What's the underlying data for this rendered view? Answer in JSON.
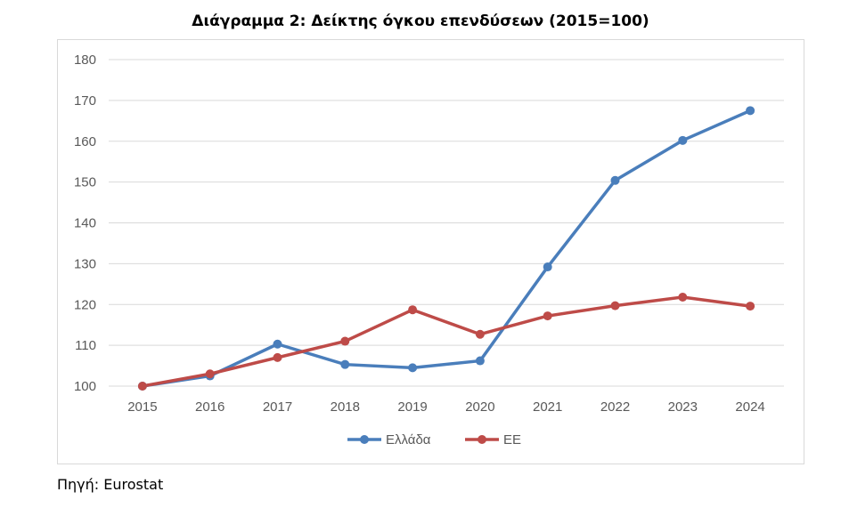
{
  "chart_data": {
    "type": "line",
    "title": "Διάγραμμα 2: Δείκτης όγκου επενδύσεων (2015=100)",
    "x": [
      "2015",
      "2016",
      "2017",
      "2018",
      "2019",
      "2020",
      "2021",
      "2022",
      "2023",
      "2024"
    ],
    "series": [
      {
        "name": "Ελλάδα",
        "color": "#4a7ebb",
        "values": [
          100,
          102.5,
          110.3,
          105.3,
          104.5,
          106.2,
          129.2,
          150.4,
          160.2,
          167.5
        ]
      },
      {
        "name": "ΕΕ",
        "color": "#be4b48",
        "values": [
          100,
          103,
          107,
          111,
          118.7,
          112.7,
          117.2,
          119.7,
          121.8,
          119.6
        ]
      }
    ],
    "ylim": [
      100,
      180
    ],
    "yticks": [
      "100",
      "110",
      "120",
      "130",
      "140",
      "150",
      "160",
      "170",
      "180"
    ],
    "grid": true,
    "legend_position": "bottom"
  },
  "source": "Πηγή: Eurostat"
}
